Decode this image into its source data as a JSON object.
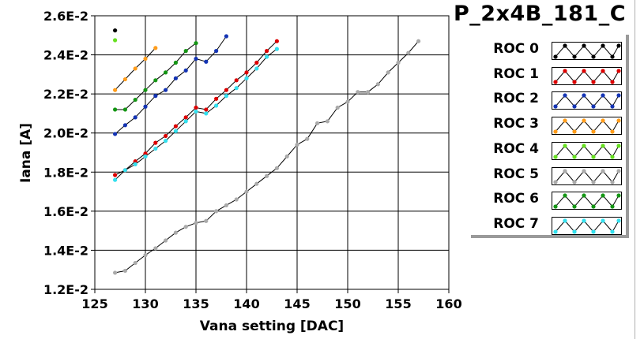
{
  "chart_data": {
    "type": "line",
    "title": "P_2x4B_181_C",
    "xlabel": "Vana setting [DAC]",
    "ylabel": "Iana [A]",
    "xlim": [
      125,
      160
    ],
    "ylim": [
      0.012,
      0.026
    ],
    "x_ticks": [
      125,
      130,
      135,
      140,
      145,
      150,
      155,
      160
    ],
    "x_tick_labels": [
      "125",
      "130",
      "135",
      "140",
      "145",
      "150",
      "155",
      "160"
    ],
    "y_ticks": [
      0.012,
      0.014,
      0.016,
      0.018,
      0.02,
      0.022,
      0.024,
      0.026
    ],
    "y_tick_labels": [
      "1.2E-2",
      "1.4E-2",
      "1.6E-2",
      "1.8E-2",
      "2.0E-2",
      "2.2E-2",
      "2.4E-2",
      "2.6E-2"
    ],
    "grid": true,
    "legend_position": "right",
    "series": [
      {
        "name": "ROC 0",
        "color": "#000000",
        "x": [
          127
        ],
        "y": [
          0.02525
        ]
      },
      {
        "name": "ROC 1",
        "color": "#dd0000",
        "x": [
          127,
          128,
          129,
          130,
          131,
          132,
          133,
          134,
          135,
          136,
          137,
          138,
          139,
          140,
          141,
          142,
          143
        ],
        "y": [
          0.01785,
          0.0181,
          0.01855,
          0.01895,
          0.0195,
          0.01985,
          0.02035,
          0.0208,
          0.0213,
          0.0212,
          0.02175,
          0.0222,
          0.0227,
          0.0231,
          0.0236,
          0.0242,
          0.0247
        ]
      },
      {
        "name": "ROC 2",
        "color": "#1434b4",
        "x": [
          127,
          128,
          129,
          130,
          131,
          132,
          133,
          134,
          135,
          136,
          137,
          138
        ],
        "y": [
          0.01995,
          0.0204,
          0.0208,
          0.02135,
          0.0219,
          0.0222,
          0.0228,
          0.0232,
          0.0238,
          0.02365,
          0.0242,
          0.02495
        ]
      },
      {
        "name": "ROC 3",
        "color": "#ff9c1a",
        "x": [
          127,
          128,
          129,
          130,
          131
        ],
        "y": [
          0.0222,
          0.02275,
          0.0233,
          0.0238,
          0.02435
        ]
      },
      {
        "name": "ROC 4",
        "color": "#66e020",
        "x": [
          127
        ],
        "y": [
          0.02475
        ]
      },
      {
        "name": "ROC 5",
        "color": "#aaaaaa",
        "x": [
          127,
          128,
          129,
          130,
          131,
          132,
          133,
          134,
          135,
          136,
          137,
          138,
          139,
          140,
          141,
          142,
          143,
          144,
          145,
          146,
          147,
          148,
          149,
          150,
          151,
          152,
          153,
          154,
          155,
          156,
          157
        ],
        "y": [
          0.01285,
          0.01295,
          0.01335,
          0.01375,
          0.0141,
          0.0145,
          0.0149,
          0.0152,
          0.0154,
          0.0155,
          0.016,
          0.0163,
          0.0166,
          0.017,
          0.0174,
          0.0178,
          0.0182,
          0.0188,
          0.0194,
          0.0197,
          0.0205,
          0.0206,
          0.0213,
          0.0216,
          0.0221,
          0.0221,
          0.0225,
          0.0231,
          0.0236,
          0.0241,
          0.0247
        ]
      },
      {
        "name": "ROC 6",
        "color": "#149614",
        "x": [
          127,
          128,
          129,
          130,
          131,
          132,
          133,
          134,
          135
        ],
        "y": [
          0.0212,
          0.0212,
          0.0217,
          0.0222,
          0.0227,
          0.0231,
          0.0236,
          0.0242,
          0.0246
        ]
      },
      {
        "name": "ROC 7",
        "color": "#33e0ee",
        "x": [
          127,
          128,
          129,
          130,
          131,
          132,
          133,
          134,
          135,
          136,
          137,
          138,
          139,
          140,
          141,
          142,
          143
        ],
        "y": [
          0.0176,
          0.0181,
          0.0184,
          0.0188,
          0.0192,
          0.0196,
          0.0201,
          0.0206,
          0.0211,
          0.021,
          0.0214,
          0.0219,
          0.0223,
          0.0228,
          0.0233,
          0.0239,
          0.0243
        ]
      }
    ]
  }
}
